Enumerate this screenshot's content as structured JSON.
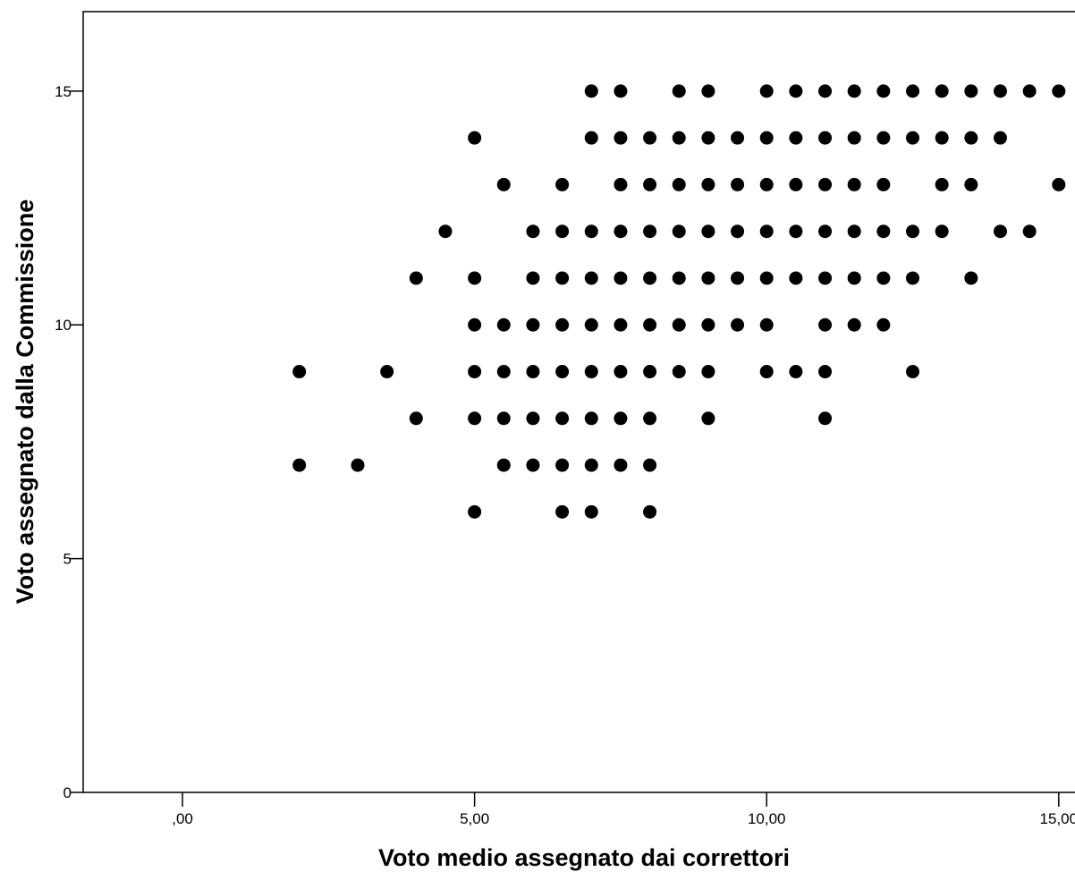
{
  "chart_data": {
    "type": "scatter",
    "title": "",
    "xlabel": "Voto medio assegnato dai correttori",
    "ylabel": "Voto assegnato dalla Commissione",
    "xlim": [
      -1.7,
      15.6
    ],
    "ylim": [
      0,
      16.7
    ],
    "x_ticks": [
      0,
      5,
      10,
      15
    ],
    "x_tick_labels": [
      ",00",
      "5,00",
      "10,00",
      "15,00"
    ],
    "y_ticks": [
      0,
      5,
      10,
      15
    ],
    "y_tick_labels": [
      "0",
      "5",
      "10",
      "15"
    ],
    "grid": false,
    "legend": "none",
    "marker_color": "#000000",
    "points": [
      [
        7,
        15
      ],
      [
        7.5,
        15
      ],
      [
        8.5,
        15
      ],
      [
        9,
        15
      ],
      [
        10,
        15
      ],
      [
        10.5,
        15
      ],
      [
        11,
        15
      ],
      [
        11.5,
        15
      ],
      [
        12,
        15
      ],
      [
        12.5,
        15
      ],
      [
        13,
        15
      ],
      [
        13.5,
        15
      ],
      [
        14,
        15
      ],
      [
        14.5,
        15
      ],
      [
        15,
        15
      ],
      [
        5,
        14
      ],
      [
        7,
        14
      ],
      [
        7.5,
        14
      ],
      [
        8,
        14
      ],
      [
        8.5,
        14
      ],
      [
        9,
        14
      ],
      [
        9.5,
        14
      ],
      [
        10,
        14
      ],
      [
        10.5,
        14
      ],
      [
        11,
        14
      ],
      [
        11.5,
        14
      ],
      [
        12,
        14
      ],
      [
        12.5,
        14
      ],
      [
        13,
        14
      ],
      [
        13.5,
        14
      ],
      [
        14,
        14
      ],
      [
        5.5,
        13
      ],
      [
        6.5,
        13
      ],
      [
        7.5,
        13
      ],
      [
        8,
        13
      ],
      [
        8.5,
        13
      ],
      [
        9,
        13
      ],
      [
        9.5,
        13
      ],
      [
        10,
        13
      ],
      [
        10.5,
        13
      ],
      [
        11,
        13
      ],
      [
        11.5,
        13
      ],
      [
        12,
        13
      ],
      [
        13,
        13
      ],
      [
        13.5,
        13
      ],
      [
        15,
        13
      ],
      [
        4.5,
        12
      ],
      [
        6,
        12
      ],
      [
        6.5,
        12
      ],
      [
        7,
        12
      ],
      [
        7.5,
        12
      ],
      [
        8,
        12
      ],
      [
        8.5,
        12
      ],
      [
        9,
        12
      ],
      [
        9.5,
        12
      ],
      [
        10,
        12
      ],
      [
        10.5,
        12
      ],
      [
        11,
        12
      ],
      [
        11.5,
        12
      ],
      [
        12,
        12
      ],
      [
        12.5,
        12
      ],
      [
        13,
        12
      ],
      [
        14,
        12
      ],
      [
        14.5,
        12
      ],
      [
        4,
        11
      ],
      [
        5,
        11
      ],
      [
        6,
        11
      ],
      [
        6.5,
        11
      ],
      [
        7,
        11
      ],
      [
        7.5,
        11
      ],
      [
        8,
        11
      ],
      [
        8.5,
        11
      ],
      [
        9,
        11
      ],
      [
        9.5,
        11
      ],
      [
        10,
        11
      ],
      [
        10.5,
        11
      ],
      [
        11,
        11
      ],
      [
        11.5,
        11
      ],
      [
        12,
        11
      ],
      [
        12.5,
        11
      ],
      [
        13.5,
        11
      ],
      [
        5,
        10
      ],
      [
        5.5,
        10
      ],
      [
        6,
        10
      ],
      [
        6.5,
        10
      ],
      [
        7,
        10
      ],
      [
        7.5,
        10
      ],
      [
        8,
        10
      ],
      [
        8.5,
        10
      ],
      [
        9,
        10
      ],
      [
        9.5,
        10
      ],
      [
        10,
        10
      ],
      [
        11,
        10
      ],
      [
        11.5,
        10
      ],
      [
        12,
        10
      ],
      [
        2,
        9
      ],
      [
        3.5,
        9
      ],
      [
        5,
        9
      ],
      [
        5.5,
        9
      ],
      [
        6,
        9
      ],
      [
        6.5,
        9
      ],
      [
        7,
        9
      ],
      [
        7.5,
        9
      ],
      [
        8,
        9
      ],
      [
        8.5,
        9
      ],
      [
        9,
        9
      ],
      [
        10,
        9
      ],
      [
        10.5,
        9
      ],
      [
        11,
        9
      ],
      [
        12.5,
        9
      ],
      [
        4,
        8
      ],
      [
        5,
        8
      ],
      [
        5.5,
        8
      ],
      [
        6,
        8
      ],
      [
        6.5,
        8
      ],
      [
        7,
        8
      ],
      [
        7.5,
        8
      ],
      [
        8,
        8
      ],
      [
        9,
        8
      ],
      [
        11,
        8
      ],
      [
        2,
        7
      ],
      [
        3,
        7
      ],
      [
        5.5,
        7
      ],
      [
        6,
        7
      ],
      [
        6.5,
        7
      ],
      [
        7,
        7
      ],
      [
        7.5,
        7
      ],
      [
        8,
        7
      ],
      [
        5,
        6
      ],
      [
        6.5,
        6
      ],
      [
        7,
        6
      ],
      [
        8,
        6
      ]
    ]
  }
}
